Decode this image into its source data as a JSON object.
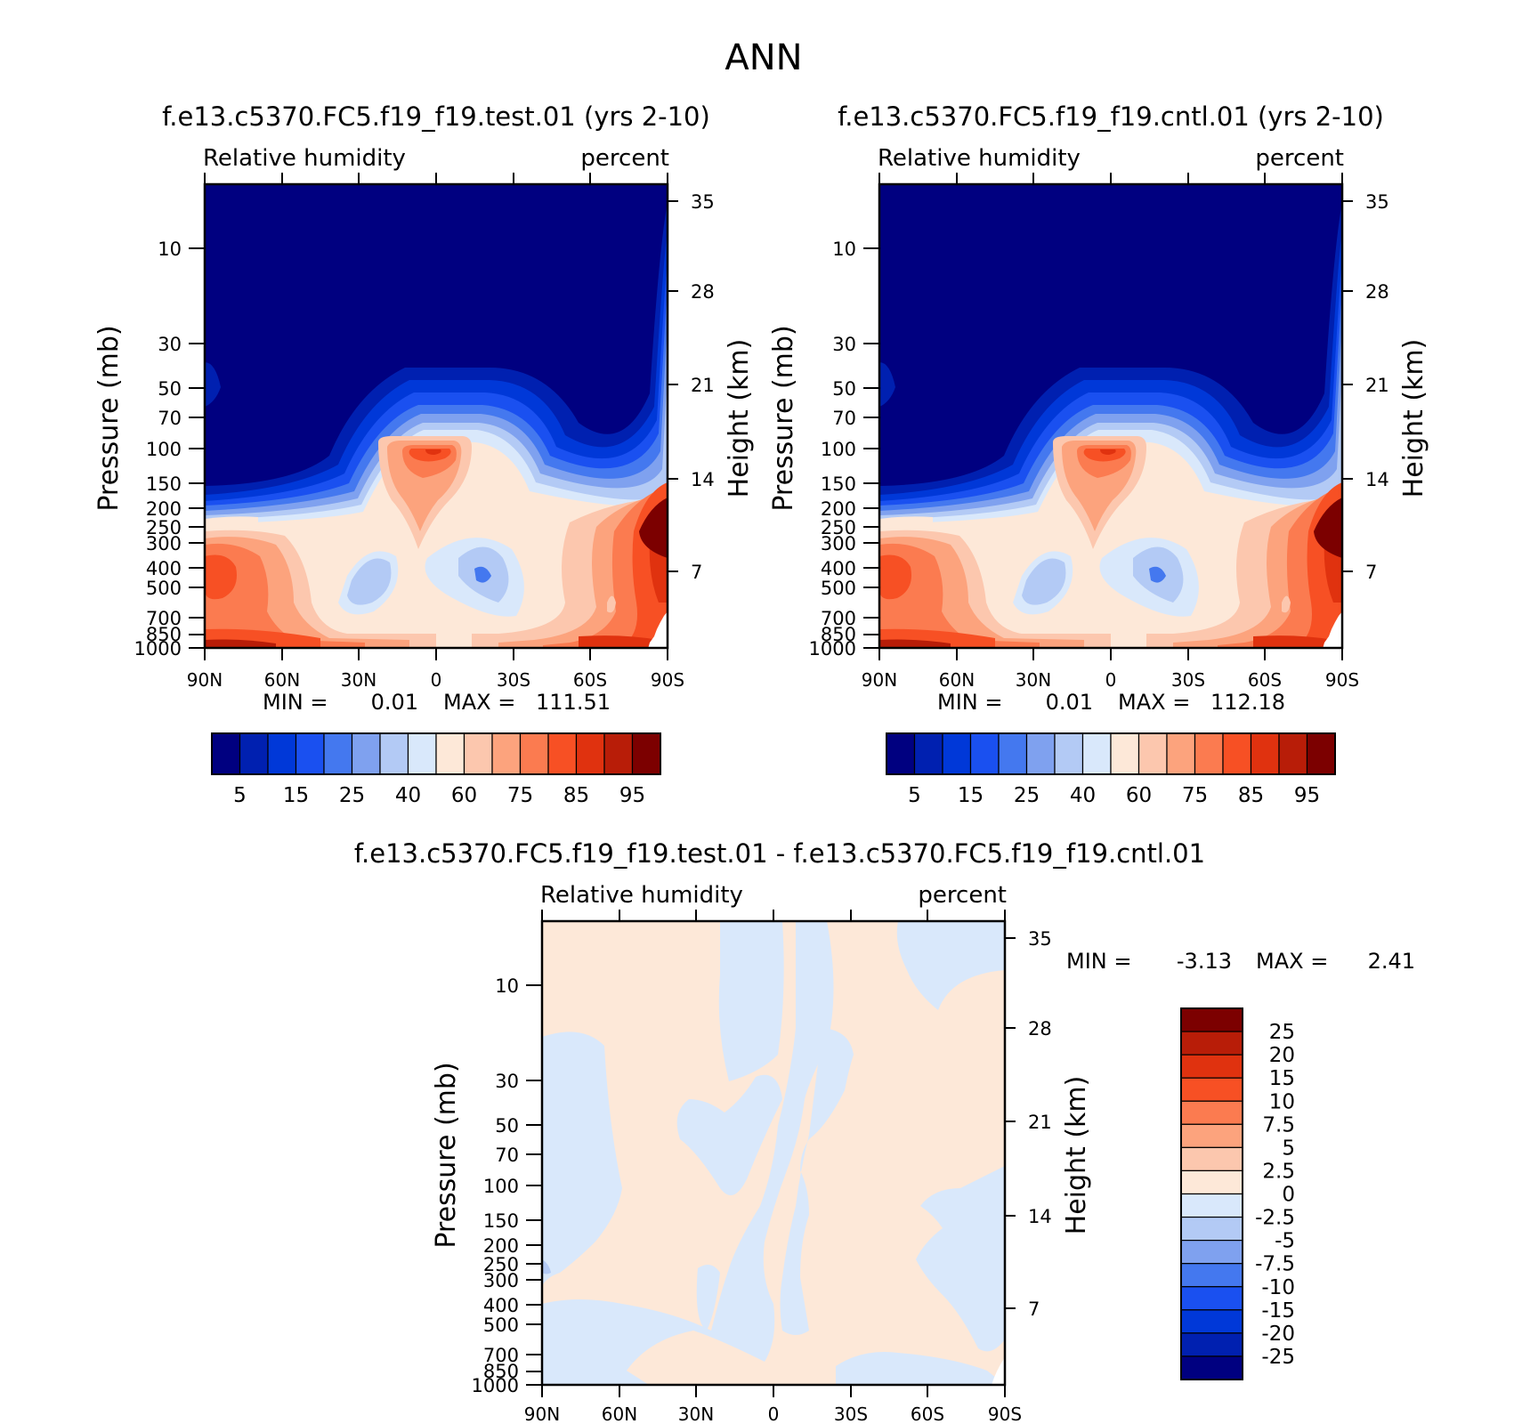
{
  "figure_title": "ANN",
  "colors": {
    "abs_levels": [
      "#000080",
      "#0020b0",
      "#0038d8",
      "#1a50f0",
      "#4478ef",
      "#7fa1ef",
      "#b3caf5",
      "#d9e8fb",
      "#fde8d8",
      "#fcc7ae",
      "#fca37d",
      "#fb7b50",
      "#f75024",
      "#e0320f",
      "#b81d08",
      "#7c0000"
    ],
    "diff_levels": [
      "#000080",
      "#0020b0",
      "#0038d8",
      "#1a50f0",
      "#4478ef",
      "#7fa1ef",
      "#b3caf5",
      "#d9e8fb",
      "#fde8d8",
      "#fcc7ae",
      "#fca37d",
      "#fb7b50",
      "#f75024",
      "#e0320f",
      "#b81d08",
      "#7c0000"
    ]
  },
  "panels": [
    {
      "id": "test",
      "case_title": "f.e13.c5370.FC5.f19_f19.test.01 (yrs 2-10)",
      "variable": "Relative humidity",
      "units": "percent",
      "left_axis_label": "Pressure (mb)",
      "right_axis_label": "Height (km)",
      "min_label": "MIN =",
      "min_value": "0.01",
      "max_label": "MAX =",
      "max_value": "111.51"
    },
    {
      "id": "cntl",
      "case_title": "f.e13.c5370.FC5.f19_f19.cntl.01 (yrs 2-10)",
      "variable": "Relative humidity",
      "units": "percent",
      "left_axis_label": "Pressure (mb)",
      "right_axis_label": "Height (km)",
      "min_label": "MIN =",
      "min_value": "0.01",
      "max_label": "MAX =",
      "max_value": "112.18"
    },
    {
      "id": "diff",
      "case_title": "f.e13.c5370.FC5.f19_f19.test.01 - f.e13.c5370.FC5.f19_f19.cntl.01",
      "variable": "Relative humidity",
      "units": "percent",
      "left_axis_label": "Pressure (mb)",
      "right_axis_label": "Height (km)",
      "min_label": "MIN =",
      "min_value": "-3.13",
      "max_label": "MAX =",
      "max_value": "2.41"
    }
  ],
  "chart_data": [
    {
      "type": "heatmap",
      "panel": "test",
      "title": "f.e13.c5370.FC5.f19_f19.test.01 (yrs 2-10)",
      "xlabel": "",
      "ylabel": "Pressure (mb)",
      "y2label": "Height (km)",
      "x_ticks": [
        "90N",
        "60N",
        "30N",
        "0",
        "30S",
        "60S",
        "90S"
      ],
      "y_ticks": [
        "10",
        "30",
        "50",
        "70",
        "100",
        "150",
        "200",
        "250",
        "300",
        "400",
        "500",
        "700",
        "850",
        "1000"
      ],
      "y2_ticks": [
        "35",
        "28",
        "21",
        "14",
        "7"
      ],
      "colorbar_labels": [
        "5",
        "15",
        "25",
        "40",
        "60",
        "75",
        "85",
        "95"
      ],
      "min": 0.01,
      "max": 111.51
    },
    {
      "type": "heatmap",
      "panel": "cntl",
      "title": "f.e13.c5370.FC5.f19_f19.cntl.01 (yrs 2-10)",
      "xlabel": "",
      "ylabel": "Pressure (mb)",
      "y2label": "Height (km)",
      "x_ticks": [
        "90N",
        "60N",
        "30N",
        "0",
        "30S",
        "60S",
        "90S"
      ],
      "y_ticks": [
        "10",
        "30",
        "50",
        "70",
        "100",
        "150",
        "200",
        "250",
        "300",
        "400",
        "500",
        "700",
        "850",
        "1000"
      ],
      "y2_ticks": [
        "35",
        "28",
        "21",
        "14",
        "7"
      ],
      "colorbar_labels": [
        "5",
        "15",
        "25",
        "40",
        "60",
        "75",
        "85",
        "95"
      ],
      "min": 0.01,
      "max": 112.18
    },
    {
      "type": "heatmap",
      "panel": "diff",
      "title": "f.e13.c5370.FC5.f19_f19.test.01 - f.e13.c5370.FC5.f19_f19.cntl.01",
      "xlabel": "",
      "ylabel": "Pressure (mb)",
      "y2label": "Height (km)",
      "x_ticks": [
        "90N",
        "60N",
        "30N",
        "0",
        "30S",
        "60S",
        "90S"
      ],
      "y_ticks": [
        "10",
        "30",
        "50",
        "70",
        "100",
        "150",
        "200",
        "250",
        "300",
        "400",
        "500",
        "700",
        "850",
        "1000"
      ],
      "y2_ticks": [
        "35",
        "28",
        "21",
        "14",
        "7"
      ],
      "colorbar_labels": [
        "25",
        "20",
        "15",
        "10",
        "7.5",
        "5",
        "2.5",
        "0",
        "-2.5",
        "-5",
        "-7.5",
        "-10",
        "-15",
        "-20",
        "-25"
      ],
      "min": -3.13,
      "max": 2.41
    }
  ]
}
